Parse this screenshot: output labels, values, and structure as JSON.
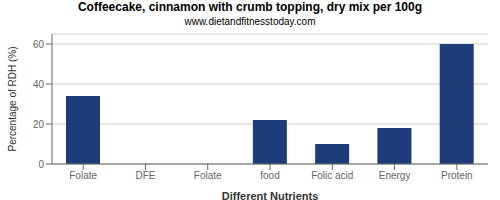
{
  "chart_data": {
    "type": "bar",
    "title": "Coffeecake, cinnamon with crumb topping, dry mix per 100g",
    "subtitle": "www.dietandfitnesstoday.com",
    "xlabel": "Different Nutrients",
    "ylabel": "Percentage of RDH (%)",
    "categories": [
      "Folate",
      "DFE",
      "Folate",
      "food",
      "Folic acid",
      "Energy",
      "Protein"
    ],
    "values": [
      34,
      0,
      0,
      22,
      10,
      18,
      60
    ],
    "color": "#1f3c7a",
    "ylim": [
      0,
      65
    ],
    "yticks": [
      0,
      20,
      40,
      60
    ],
    "grid": true
  }
}
